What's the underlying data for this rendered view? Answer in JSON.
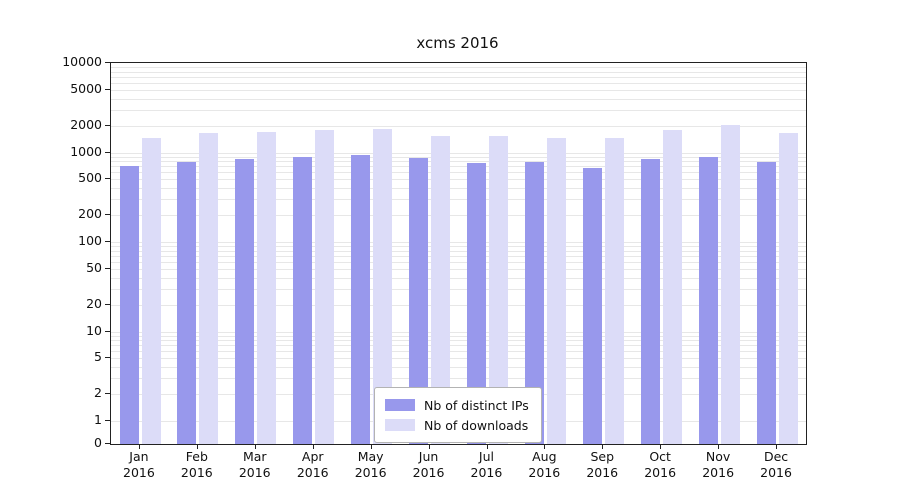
{
  "title": "xcms 2016",
  "axis": {
    "y_ticks": [
      0,
      1,
      2,
      5,
      10,
      20,
      50,
      100,
      200,
      500,
      1000,
      2000,
      5000,
      10000
    ],
    "x_year": "2016"
  },
  "legend": {
    "items": [
      {
        "label": "Nb of distinct IPs",
        "color": "#9898ec"
      },
      {
        "label": "Nb of downloads",
        "color": "#dcdcf8"
      }
    ]
  },
  "chart_data": {
    "type": "bar",
    "title": "xcms 2016",
    "categories": [
      "Jan",
      "Feb",
      "Mar",
      "Apr",
      "May",
      "Jun",
      "Jul",
      "Aug",
      "Sep",
      "Oct",
      "Nov",
      "Dec"
    ],
    "x_year": "2016",
    "series": [
      {
        "name": "Nb of distinct IPs",
        "color": "#9898ec",
        "values": [
          700,
          790,
          840,
          890,
          940,
          860,
          760,
          780,
          670,
          850,
          900,
          790
        ]
      },
      {
        "name": "Nb of downloads",
        "color": "#dcdcf8",
        "values": [
          1450,
          1650,
          1700,
          1800,
          1850,
          1550,
          1550,
          1450,
          1450,
          1800,
          2050,
          1650
        ]
      }
    ],
    "yscale": "symlog",
    "ylim": [
      0,
      10000
    ],
    "y_ticks": [
      0,
      1,
      2,
      5,
      10,
      20,
      50,
      100,
      200,
      500,
      1000,
      2000,
      5000,
      10000
    ],
    "grid": true,
    "legend_position": "lower center"
  }
}
